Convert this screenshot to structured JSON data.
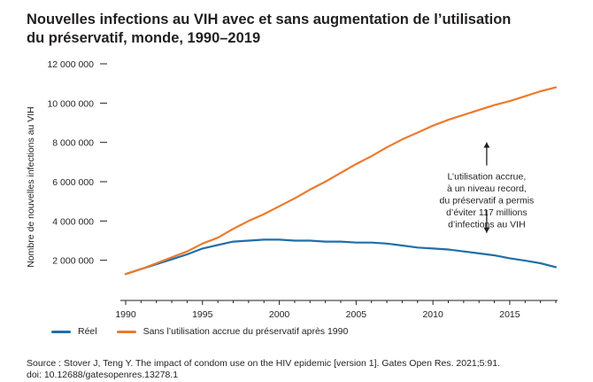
{
  "title": {
    "line1": "Nouvelles infections au VIH avec et sans augmentation de l’utilisation",
    "line2": "du préservatif, monde, 1990–2019"
  },
  "colors": {
    "reel": "#1f6fa8",
    "sans": "#ec7a2c",
    "gridtick": "#231f20"
  },
  "legend": {
    "reel": "Réel",
    "sans": "Sans l’utilisation accrue du préservatif après 1990"
  },
  "source": {
    "line1": "Source : Stover J, Teng Y. The impact of condom use on the HIV epidemic [version 1]. Gates Open Res. 2021;5:91.",
    "line2": "doi: 10.12688/gatesopenres.13278.1"
  },
  "chart_data": {
    "type": "line",
    "title": "Nouvelles infections au VIH avec et sans augmentation de l’utilisation du préservatif, monde, 1990–2019",
    "xlabel": "",
    "ylabel": "Nombre de nouvelles infections au VIH",
    "xlim": [
      1989,
      2019
    ],
    "ylim": [
      0,
      12000000
    ],
    "x_ticks": [
      1990,
      1995,
      2000,
      2005,
      2010,
      2015
    ],
    "y_ticks": [
      {
        "value": 2000000,
        "label": "2 000 000"
      },
      {
        "value": 4000000,
        "label": "4 000 000"
      },
      {
        "value": 6000000,
        "label": "6 000 000"
      },
      {
        "value": 8000000,
        "label": "8 000 000"
      },
      {
        "value": 10000000,
        "label": "10 000 000"
      },
      {
        "value": 12000000,
        "label": "12 000 000"
      }
    ],
    "x": [
      1990,
      1991,
      1992,
      1993,
      1994,
      1995,
      1996,
      1997,
      1998,
      1999,
      2000,
      2001,
      2002,
      2003,
      2004,
      2005,
      2006,
      2007,
      2008,
      2009,
      2010,
      2011,
      2012,
      2013,
      2014,
      2015,
      2016,
      2017,
      2018
    ],
    "series": [
      {
        "name": "Réel",
        "color_key": "reel",
        "values": [
          1300000,
          1550000,
          1800000,
          2050000,
          2300000,
          2600000,
          2780000,
          2950000,
          3000000,
          3050000,
          3050000,
          3000000,
          3000000,
          2950000,
          2950000,
          2900000,
          2900000,
          2850000,
          2750000,
          2650000,
          2600000,
          2550000,
          2450000,
          2350000,
          2250000,
          2100000,
          1980000,
          1850000,
          1650000
        ]
      },
      {
        "name": "Sans l’utilisation accrue du préservatif après 1990",
        "color_key": "sans",
        "values": [
          1300000,
          1550000,
          1850000,
          2150000,
          2450000,
          2850000,
          3150000,
          3600000,
          4000000,
          4350000,
          4750000,
          5150000,
          5600000,
          6000000,
          6450000,
          6900000,
          7300000,
          7750000,
          8150000,
          8500000,
          8850000,
          9150000,
          9400000,
          9650000,
          9900000,
          10100000,
          10350000,
          10600000,
          10800000
        ]
      }
    ],
    "annotation": {
      "lines": [
        "L’utilisation accrue,",
        "à un niveau record,",
        "du préservatif a permis",
        "d’éviter 117 millions",
        "d’infections au VIH"
      ],
      "x": 2013.5,
      "arrow_up_to": 8000000,
      "arrow_down_to": 3400000
    }
  }
}
